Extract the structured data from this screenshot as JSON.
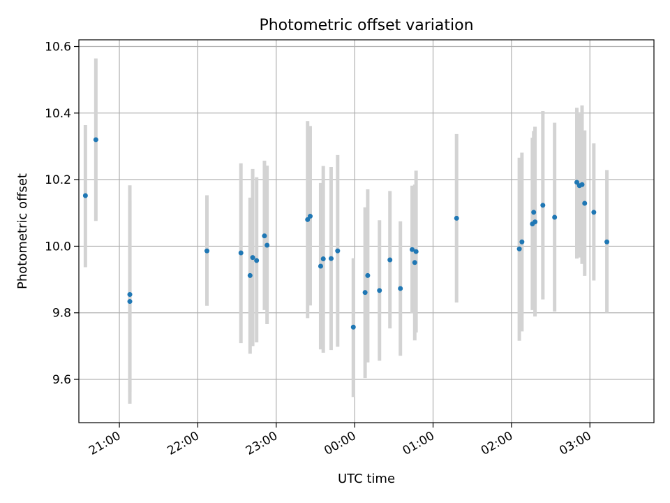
{
  "chart_data": {
    "type": "scatter",
    "title": "Photometric offset variation",
    "xlabel": "UTC time",
    "ylabel": "Photometric offset",
    "x_axis_type": "time",
    "x_tick_labels": [
      "21:00",
      "22:00",
      "23:00",
      "00:00",
      "01:00",
      "02:00",
      "03:00"
    ],
    "y_ticks": [
      9.6,
      9.8,
      10.0,
      10.2,
      10.4,
      10.6
    ],
    "y_tick_labels": [
      "9.6",
      "9.8",
      "10.0",
      "10.2",
      "10.4",
      "10.6"
    ],
    "ylim": [
      9.47,
      10.62
    ],
    "xlim_start": "20:29",
    "xlim_end": "03:49",
    "grid": true,
    "point_color": "#1f77b4",
    "errorbar_color": "#d3d3d3",
    "points": [
      {
        "x": "20:34",
        "y": 10.152,
        "lo": 9.937,
        "hi": 10.364
      },
      {
        "x": "20:42",
        "y": 10.32,
        "lo": 10.076,
        "hi": 10.564
      },
      {
        "x": "21:08",
        "y": 9.855,
        "lo": 9.562,
        "hi": 10.137
      },
      {
        "x": "21:08",
        "y": 9.834,
        "lo": 9.527,
        "hi": 10.183
      },
      {
        "x": "22:07",
        "y": 9.986,
        "lo": 9.821,
        "hi": 10.153
      },
      {
        "x": "22:33",
        "y": 9.98,
        "lo": 9.709,
        "hi": 10.249
      },
      {
        "x": "22:40",
        "y": 9.912,
        "lo": 9.677,
        "hi": 10.146
      },
      {
        "x": "22:42",
        "y": 9.966,
        "lo": 9.7,
        "hi": 10.232
      },
      {
        "x": "22:45",
        "y": 9.957,
        "lo": 9.711,
        "hi": 10.207
      },
      {
        "x": "22:51",
        "y": 10.031,
        "lo": 9.808,
        "hi": 10.257
      },
      {
        "x": "22:53",
        "y": 10.003,
        "lo": 9.766,
        "hi": 10.242
      },
      {
        "x": "23:24",
        "y": 10.08,
        "lo": 9.784,
        "hi": 10.376
      },
      {
        "x": "23:26",
        "y": 10.09,
        "lo": 9.822,
        "hi": 10.361
      },
      {
        "x": "23:34",
        "y": 9.94,
        "lo": 9.69,
        "hi": 10.19
      },
      {
        "x": "23:36",
        "y": 9.962,
        "lo": 9.68,
        "hi": 10.241
      },
      {
        "x": "23:42",
        "y": 9.963,
        "lo": 9.688,
        "hi": 10.238
      },
      {
        "x": "23:47",
        "y": 9.986,
        "lo": 9.698,
        "hi": 10.274
      },
      {
        "x": "23:59",
        "y": 9.757,
        "lo": 9.547,
        "hi": 9.964
      },
      {
        "x": "00:08",
        "y": 9.861,
        "lo": 9.604,
        "hi": 10.117
      },
      {
        "x": "00:10",
        "y": 9.912,
        "lo": 9.651,
        "hi": 10.171
      },
      {
        "x": "00:19",
        "y": 9.867,
        "lo": 9.656,
        "hi": 10.078
      },
      {
        "x": "00:27",
        "y": 9.959,
        "lo": 9.753,
        "hi": 10.166
      },
      {
        "x": "00:35",
        "y": 9.873,
        "lo": 9.671,
        "hi": 10.075
      },
      {
        "x": "00:44",
        "y": 9.99,
        "lo": 9.799,
        "hi": 10.182
      },
      {
        "x": "00:46",
        "y": 9.951,
        "lo": 9.717,
        "hi": 10.185
      },
      {
        "x": "00:47",
        "y": 9.984,
        "lo": 9.741,
        "hi": 10.227
      },
      {
        "x": "01:18",
        "y": 10.084,
        "lo": 9.831,
        "hi": 10.337
      },
      {
        "x": "02:06",
        "y": 9.992,
        "lo": 9.716,
        "hi": 10.266
      },
      {
        "x": "02:08",
        "y": 10.013,
        "lo": 9.744,
        "hi": 10.281
      },
      {
        "x": "02:16",
        "y": 10.067,
        "lo": 9.808,
        "hi": 10.326
      },
      {
        "x": "02:17",
        "y": 10.102,
        "lo": 9.838,
        "hi": 10.346
      },
      {
        "x": "02:18",
        "y": 10.073,
        "lo": 9.789,
        "hi": 10.359
      },
      {
        "x": "02:24",
        "y": 10.123,
        "lo": 9.84,
        "hi": 10.406
      },
      {
        "x": "02:33",
        "y": 10.087,
        "lo": 9.804,
        "hi": 10.371
      },
      {
        "x": "02:50",
        "y": 10.192,
        "lo": 9.963,
        "hi": 10.416
      },
      {
        "x": "02:52",
        "y": 10.182,
        "lo": 9.966,
        "hi": 10.398
      },
      {
        "x": "02:54",
        "y": 10.185,
        "lo": 9.947,
        "hi": 10.423
      },
      {
        "x": "02:56",
        "y": 10.129,
        "lo": 9.911,
        "hi": 10.348
      },
      {
        "x": "03:03",
        "y": 10.102,
        "lo": 9.897,
        "hi": 10.309
      },
      {
        "x": "03:13",
        "y": 10.013,
        "lo": 9.8,
        "hi": 10.229
      }
    ]
  }
}
